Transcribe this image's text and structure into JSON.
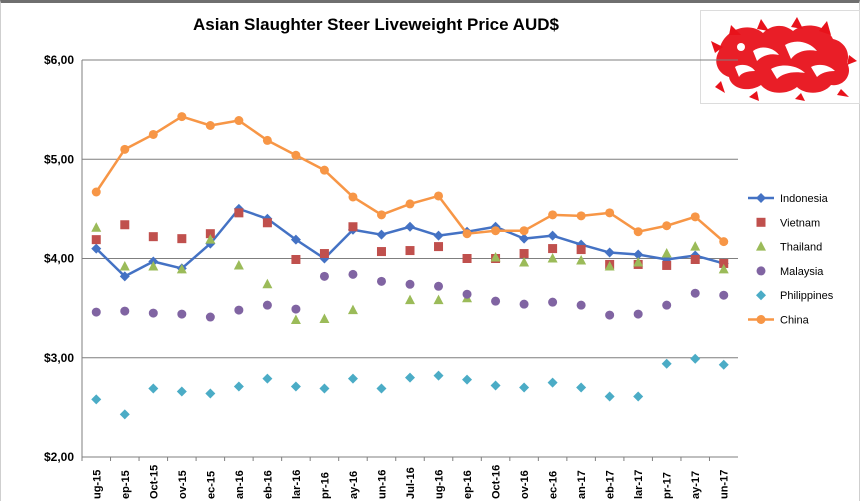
{
  "chart_data": {
    "type": "line",
    "title": "Asian Slaughter Steer Liveweight Price AUD$",
    "xlabel": "",
    "ylabel": "",
    "ylim": [
      2.0,
      6.0
    ],
    "yticks": [
      "$2,00",
      "$3,00",
      "$4,00",
      "$5,00",
      "$6,00"
    ],
    "yticks_values": [
      2.0,
      3.0,
      4.0,
      5.0,
      6.0
    ],
    "categories": [
      "ug-15",
      "ep-15",
      "Oct-15",
      "ov-15",
      "ec-15",
      "an-16",
      "eb-16",
      "lar-16",
      "pr-16",
      "ay-16",
      "un-16",
      "Jul-16",
      "ug-16",
      "ep-16",
      "Oct-16",
      "ov-16",
      "ec-16",
      "an-17",
      "eb-17",
      "lar-17",
      "pr-17",
      "ay-17",
      "un-17"
    ],
    "grid": true,
    "legend_position": "right",
    "series": [
      {
        "name": "Indonesia",
        "color": "#4472C4",
        "style": "line-marker",
        "marker": "diamond",
        "values": [
          4.1,
          3.82,
          3.97,
          3.9,
          4.15,
          4.5,
          4.4,
          4.19,
          4.0,
          4.29,
          4.24,
          4.32,
          4.23,
          4.27,
          4.32,
          4.2,
          4.23,
          4.14,
          4.06,
          4.04,
          3.99,
          4.03,
          3.95
        ]
      },
      {
        "name": "Vietnam",
        "color": "#C0504D",
        "style": "marker",
        "marker": "square",
        "values": [
          4.19,
          4.34,
          4.22,
          4.2,
          4.25,
          4.46,
          4.36,
          3.99,
          4.05,
          4.32,
          4.07,
          4.08,
          4.12,
          4.0,
          4.0,
          4.05,
          4.1,
          4.09,
          3.94,
          3.94,
          3.93,
          3.99,
          3.95
        ]
      },
      {
        "name": "Thailand",
        "color": "#9BBB59",
        "style": "marker",
        "marker": "triangle",
        "values": [
          4.31,
          3.92,
          3.92,
          3.89,
          4.19,
          3.93,
          3.74,
          3.38,
          3.39,
          3.48,
          null,
          3.58,
          3.58,
          3.6,
          4.01,
          3.96,
          4.0,
          3.98,
          3.92,
          3.96,
          4.05,
          4.12,
          3.89
        ]
      },
      {
        "name": "Malaysia",
        "color": "#8064A2",
        "style": "marker",
        "marker": "circle",
        "values": [
          3.46,
          3.47,
          3.45,
          3.44,
          3.41,
          3.48,
          3.53,
          3.49,
          3.82,
          3.84,
          3.77,
          3.74,
          3.72,
          3.64,
          3.57,
          3.54,
          3.56,
          3.53,
          3.43,
          3.44,
          3.53,
          3.65,
          3.63
        ]
      },
      {
        "name": "Philippines",
        "color": "#4BACC6",
        "style": "marker",
        "marker": "diamond",
        "values": [
          2.58,
          2.43,
          2.69,
          2.66,
          2.64,
          2.71,
          2.79,
          2.71,
          2.69,
          2.79,
          2.69,
          2.8,
          2.82,
          2.78,
          2.72,
          2.7,
          2.75,
          2.7,
          2.61,
          2.61,
          2.94,
          2.99,
          2.93
        ]
      },
      {
        "name": "China",
        "color": "#F79646",
        "style": "line-marker",
        "marker": "circle",
        "values": [
          4.67,
          5.1,
          5.25,
          5.43,
          5.34,
          5.39,
          5.19,
          5.04,
          4.89,
          4.62,
          4.44,
          4.55,
          4.63,
          4.25,
          4.28,
          4.28,
          4.44,
          4.43,
          4.46,
          4.27,
          4.33,
          4.42,
          4.17
        ]
      }
    ]
  },
  "logo": {
    "name": "red-dragon-logo",
    "color": "#E8121B"
  }
}
